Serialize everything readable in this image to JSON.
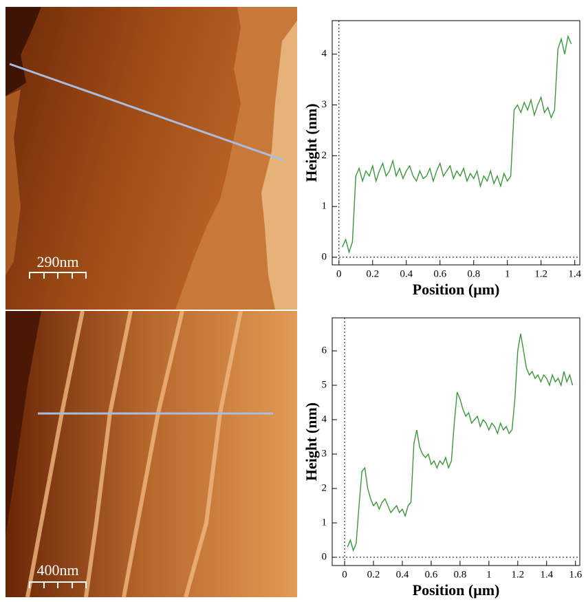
{
  "images": [
    {
      "scale_label": "290nm"
    },
    {
      "scale_label": "400nm"
    }
  ],
  "chart_data": [
    {
      "type": "line",
      "y_label": "Height (nm)",
      "x_label": "Position (μm)",
      "color": "#3a963a",
      "zero_lines": true,
      "xlim": [
        -0.04,
        1.43
      ],
      "ylim": [
        -0.15,
        4.66
      ],
      "xticks": [
        0,
        0.2,
        0.4,
        0.6,
        0.8,
        1,
        1.2,
        1.4
      ],
      "yticks": [
        0,
        1,
        2,
        3,
        4
      ],
      "x": [
        0.02,
        0.04,
        0.06,
        0.08,
        0.1,
        0.12,
        0.14,
        0.16,
        0.18,
        0.2,
        0.22,
        0.24,
        0.26,
        0.28,
        0.3,
        0.32,
        0.34,
        0.36,
        0.38,
        0.4,
        0.42,
        0.44,
        0.46,
        0.48,
        0.5,
        0.52,
        0.54,
        0.56,
        0.58,
        0.6,
        0.62,
        0.64,
        0.66,
        0.68,
        0.7,
        0.72,
        0.74,
        0.76,
        0.78,
        0.8,
        0.82,
        0.84,
        0.86,
        0.88,
        0.9,
        0.92,
        0.94,
        0.96,
        0.98,
        1.0,
        1.02,
        1.04,
        1.06,
        1.08,
        1.1,
        1.12,
        1.14,
        1.16,
        1.18,
        1.2,
        1.22,
        1.24,
        1.26,
        1.28,
        1.3,
        1.32,
        1.34,
        1.36,
        1.38
      ],
      "values": [
        0.2,
        0.35,
        0.1,
        0.3,
        1.6,
        1.75,
        1.5,
        1.7,
        1.6,
        1.8,
        1.5,
        1.7,
        1.85,
        1.6,
        1.7,
        1.9,
        1.6,
        1.75,
        1.55,
        1.7,
        1.8,
        1.6,
        1.5,
        1.7,
        1.55,
        1.6,
        1.75,
        1.5,
        1.7,
        1.85,
        1.6,
        1.7,
        1.8,
        1.55,
        1.7,
        1.6,
        1.75,
        1.5,
        1.65,
        1.55,
        1.7,
        1.4,
        1.6,
        1.5,
        1.7,
        1.45,
        1.6,
        1.4,
        1.65,
        1.5,
        1.6,
        2.9,
        3.0,
        2.85,
        3.05,
        2.9,
        3.1,
        2.8,
        3.0,
        3.15,
        2.85,
        2.95,
        2.75,
        2.9,
        4.1,
        4.3,
        4.0,
        4.35,
        4.2
      ]
    },
    {
      "type": "line",
      "y_label": "Height (nm)",
      "x_label": "Position (μm)",
      "color": "#3a963a",
      "zero_lines": true,
      "xlim": [
        -0.086,
        1.63
      ],
      "ylim": [
        -0.24,
        6.96
      ],
      "xticks": [
        0,
        0.2,
        0.4,
        0.6,
        0.8,
        1,
        1.2,
        1.4,
        1.6
      ],
      "yticks": [
        0,
        1,
        2,
        3,
        4,
        5,
        6
      ],
      "x": [
        0.02,
        0.04,
        0.06,
        0.08,
        0.1,
        0.12,
        0.14,
        0.16,
        0.18,
        0.2,
        0.22,
        0.24,
        0.26,
        0.28,
        0.3,
        0.32,
        0.34,
        0.36,
        0.38,
        0.4,
        0.42,
        0.44,
        0.46,
        0.48,
        0.5,
        0.52,
        0.54,
        0.56,
        0.58,
        0.6,
        0.62,
        0.64,
        0.66,
        0.68,
        0.7,
        0.72,
        0.74,
        0.76,
        0.78,
        0.8,
        0.82,
        0.84,
        0.86,
        0.88,
        0.9,
        0.92,
        0.94,
        0.96,
        0.98,
        1.0,
        1.02,
        1.04,
        1.06,
        1.08,
        1.1,
        1.12,
        1.14,
        1.16,
        1.18,
        1.2,
        1.22,
        1.24,
        1.26,
        1.28,
        1.3,
        1.32,
        1.34,
        1.36,
        1.38,
        1.4,
        1.42,
        1.44,
        1.46,
        1.48,
        1.5,
        1.52,
        1.54,
        1.56,
        1.58
      ],
      "values": [
        0.3,
        0.5,
        0.2,
        0.4,
        1.5,
        2.5,
        2.6,
        2.0,
        1.7,
        1.5,
        1.6,
        1.4,
        1.6,
        1.7,
        1.5,
        1.3,
        1.4,
        1.5,
        1.3,
        1.4,
        1.2,
        1.5,
        1.6,
        3.3,
        3.7,
        3.2,
        3.0,
        2.9,
        3.0,
        2.7,
        2.8,
        2.6,
        2.8,
        2.7,
        2.9,
        2.6,
        2.8,
        3.9,
        4.8,
        4.6,
        4.3,
        4.1,
        4.2,
        3.9,
        4.0,
        4.1,
        3.8,
        4.0,
        3.9,
        3.7,
        3.9,
        3.8,
        3.6,
        3.9,
        3.7,
        3.8,
        3.6,
        3.7,
        4.6,
        6.0,
        6.5,
        6.0,
        5.5,
        5.3,
        5.4,
        5.2,
        5.3,
        5.1,
        5.3,
        5.2,
        5.0,
        5.3,
        5.1,
        5.2,
        5.0,
        5.4,
        5.1,
        5.3,
        5.0
      ]
    }
  ]
}
